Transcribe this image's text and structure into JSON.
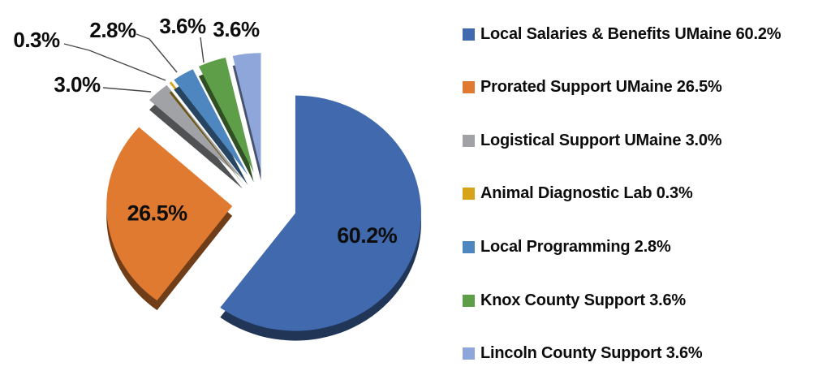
{
  "chart_data": {
    "type": "pie",
    "title": "",
    "style": "3d-exploded",
    "start_angle_deg": 0,
    "direction": "clockwise",
    "legend_position": "right",
    "data_labels": "percent",
    "slices": [
      {
        "label": "Local Salaries & Benefits UMaine",
        "value": 60.2,
        "pct_label": "60.2%",
        "legend_label": "Local Salaries & Benefits UMaine 60.2%",
        "color": "#4169AE",
        "label_placement": "inside"
      },
      {
        "label": "Prorated Support UMaine",
        "value": 26.5,
        "pct_label": "26.5%",
        "legend_label": "Prorated Support UMaine 26.5%",
        "color": "#E07A31",
        "label_placement": "inside"
      },
      {
        "label": "Logistical Support UMaine",
        "value": 3.0,
        "pct_label": "3.0%",
        "legend_label": "Logistical Support UMaine 3.0%",
        "color": "#A0A2A5",
        "label_placement": "callout"
      },
      {
        "label": "Animal Diagnostic Lab",
        "value": 0.3,
        "pct_label": "0.3%",
        "legend_label": "Animal Diagnostic Lab 0.3%",
        "color": "#D7A319",
        "label_placement": "callout"
      },
      {
        "label": "Local Programming",
        "value": 2.8,
        "pct_label": "2.8%",
        "legend_label": "Local Programming 2.8%",
        "color": "#4E87C0",
        "label_placement": "callout"
      },
      {
        "label": "Knox County Support",
        "value": 3.6,
        "pct_label": "3.6%",
        "legend_label": "Knox County Support 3.6%",
        "color": "#5F9E49",
        "label_placement": "callout"
      },
      {
        "label": "Lincoln County Support",
        "value": 3.6,
        "pct_label": "3.6%",
        "legend_label": "Lincoln County Support 3.6%",
        "color": "#8FA6DB",
        "label_placement": "callout"
      }
    ]
  }
}
